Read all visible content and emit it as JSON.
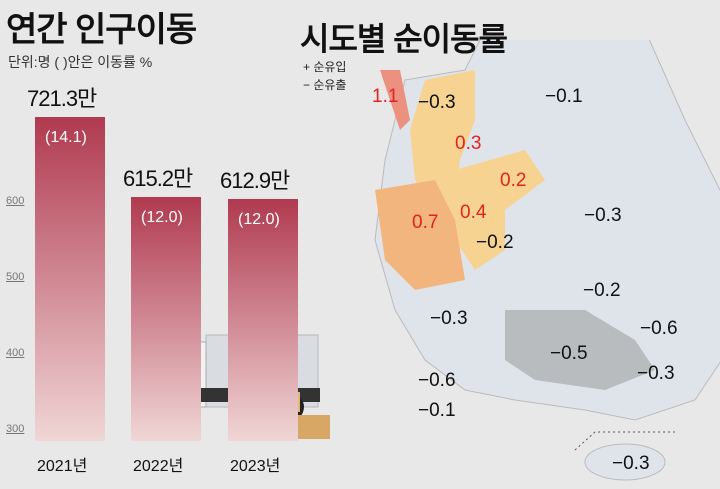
{
  "left_title": "연간 인구이동",
  "unit": "단위:명 ( )안은 이동률 %",
  "right_title": "시도별 순이동률",
  "legend": [
    "+ 순유입",
    "− 순유출"
  ],
  "colors": {
    "bar_top": "#b03a50",
    "bar_bottom": "#f0d6d6",
    "inflow_high": "#ec9080",
    "inflow_mid": "#f2b57e",
    "inflow_low": "#f6d391",
    "outflow": "#dfe3ea",
    "outflow_dark": "#b8bcbf",
    "positive_text": "#e32222"
  },
  "chart_data": [
    {
      "type": "bar",
      "title": "연간 인구이동",
      "ylabel": "단위:명 ( )안은 이동률 %",
      "ylim": [
        300,
        750
      ],
      "yticks": [
        "300",
        "400",
        "500",
        "600"
      ],
      "categories": [
        "2021년",
        "2022년",
        "2023년"
      ],
      "values": [
        721.3,
        615.2,
        612.9
      ],
      "value_labels": [
        "721.3만",
        "615.2만",
        "612.9만"
      ],
      "rate_labels": [
        "(14.1)",
        "(12.0)",
        "(12.0)"
      ]
    },
    {
      "type": "table",
      "title": "시도별 순이동률",
      "regions_values": [
        "1.1",
        "-0.3",
        "-0.1",
        "0.3",
        "0.2",
        "-0.3",
        "0.7",
        "0.4",
        "-0.2",
        "-0.2",
        "-0.3",
        "-0.6",
        "-0.5",
        "-0.3",
        "-0.6",
        "-0.1",
        "-0.3"
      ]
    }
  ]
}
